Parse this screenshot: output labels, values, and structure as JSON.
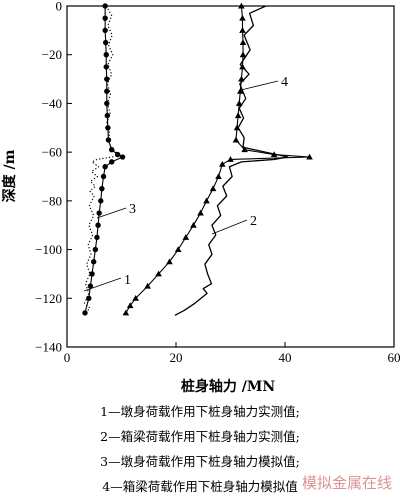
{
  "chart_data": {
    "type": "line",
    "xlabel": "桩身轴力 /MN",
    "ylabel": "深度 /m",
    "xlim": [
      0,
      60
    ],
    "ylim": [
      -140,
      0
    ],
    "xticks": [
      "0",
      "20",
      "40",
      "60"
    ],
    "yticks": [
      "0",
      "−20",
      "−40",
      "−60",
      "−80",
      "−100",
      "−120",
      "−140"
    ],
    "grid": false,
    "series": [
      {
        "name": "1",
        "style": "dotted",
        "points": [
          [
            7.2,
            0
          ],
          [
            8.2,
            -4
          ],
          [
            7.5,
            -8
          ],
          [
            8.3,
            -12
          ],
          [
            7.6,
            -16
          ],
          [
            8.4,
            -20
          ],
          [
            7.5,
            -24
          ],
          [
            8.2,
            -28
          ],
          [
            7.4,
            -32
          ],
          [
            8.0,
            -36
          ],
          [
            7.4,
            -40
          ],
          [
            7.9,
            -44
          ],
          [
            7.3,
            -48
          ],
          [
            7.8,
            -52
          ],
          [
            7.6,
            -56
          ],
          [
            8.5,
            -59
          ],
          [
            9.5,
            -61
          ],
          [
            8.3,
            -62
          ],
          [
            5.5,
            -63
          ],
          [
            4.6,
            -64
          ],
          [
            5.8,
            -66
          ],
          [
            4.5,
            -68
          ],
          [
            5.6,
            -70
          ],
          [
            4.3,
            -72
          ],
          [
            5.2,
            -74
          ],
          [
            4.2,
            -76
          ],
          [
            5.0,
            -78
          ],
          [
            4.1,
            -82
          ],
          [
            4.9,
            -86
          ],
          [
            4.0,
            -90
          ],
          [
            4.7,
            -94
          ],
          [
            3.9,
            -98
          ],
          [
            4.4,
            -102
          ],
          [
            3.6,
            -106
          ],
          [
            4.2,
            -110
          ],
          [
            3.4,
            -114
          ],
          [
            4.0,
            -118
          ],
          [
            3.2,
            -122
          ],
          [
            4.2,
            -124
          ],
          [
            3.4,
            -126
          ]
        ]
      },
      {
        "name": "2",
        "style": "solid",
        "points": [
          [
            36.5,
            0
          ],
          [
            35.5,
            -1
          ],
          [
            33.5,
            -3
          ],
          [
            34.2,
            -8
          ],
          [
            32.5,
            -12
          ],
          [
            33.6,
            -18
          ],
          [
            31.8,
            -24
          ],
          [
            33.4,
            -28
          ],
          [
            31.7,
            -32
          ],
          [
            32.8,
            -38
          ],
          [
            31.6,
            -42
          ],
          [
            32.4,
            -46
          ],
          [
            31.4,
            -50
          ],
          [
            32.5,
            -54
          ],
          [
            32.3,
            -58
          ],
          [
            38.5,
            -61
          ],
          [
            40.5,
            -62
          ],
          [
            38.0,
            -63
          ],
          [
            32.0,
            -64
          ],
          [
            29.8,
            -66
          ],
          [
            30.3,
            -70
          ],
          [
            28.6,
            -74
          ],
          [
            29.3,
            -78
          ],
          [
            27.6,
            -82
          ],
          [
            28.2,
            -86
          ],
          [
            26.6,
            -90
          ],
          [
            27.3,
            -94
          ],
          [
            26.0,
            -98
          ],
          [
            26.6,
            -102
          ],
          [
            25.3,
            -106
          ],
          [
            25.8,
            -110
          ],
          [
            26.5,
            -114
          ],
          [
            25.0,
            -116
          ],
          [
            25.7,
            -118
          ],
          [
            23.5,
            -122
          ],
          [
            21.5,
            -125
          ],
          [
            19.8,
            -127
          ]
        ]
      },
      {
        "name": "3",
        "style": "marker-circle",
        "points": [
          [
            7.0,
            0
          ],
          [
            7.0,
            -5
          ],
          [
            7.0,
            -10
          ],
          [
            7.1,
            -15
          ],
          [
            7.2,
            -20
          ],
          [
            7.2,
            -25
          ],
          [
            7.3,
            -30
          ],
          [
            7.3,
            -35
          ],
          [
            7.3,
            -40
          ],
          [
            7.4,
            -45
          ],
          [
            7.5,
            -50
          ],
          [
            7.6,
            -55
          ],
          [
            8.2,
            -59
          ],
          [
            9.3,
            -61
          ],
          [
            10.2,
            -62
          ],
          [
            8.2,
            -64
          ],
          [
            7.0,
            -66
          ],
          [
            6.7,
            -70
          ],
          [
            6.4,
            -75
          ],
          [
            6.2,
            -80
          ],
          [
            5.9,
            -85
          ],
          [
            5.7,
            -90
          ],
          [
            5.5,
            -95
          ],
          [
            5.2,
            -100
          ],
          [
            4.9,
            -105
          ],
          [
            4.6,
            -110
          ],
          [
            4.3,
            -115
          ],
          [
            4.0,
            -120
          ],
          [
            3.3,
            -126
          ]
        ]
      },
      {
        "name": "4",
        "style": "marker-triangle",
        "points": [
          [
            32.0,
            0
          ],
          [
            32.2,
            -5
          ],
          [
            32.2,
            -10
          ],
          [
            32.3,
            -15
          ],
          [
            32.3,
            -20
          ],
          [
            32.2,
            -25
          ],
          [
            32.0,
            -30
          ],
          [
            31.8,
            -35
          ],
          [
            31.6,
            -40
          ],
          [
            31.4,
            -45
          ],
          [
            31.2,
            -50
          ],
          [
            31.0,
            -55
          ],
          [
            32.6,
            -59
          ],
          [
            38.0,
            -61
          ],
          [
            44.5,
            -62
          ],
          [
            30.0,
            -63
          ],
          [
            28.5,
            -65
          ],
          [
            27.8,
            -70
          ],
          [
            26.8,
            -75
          ],
          [
            25.6,
            -80
          ],
          [
            24.5,
            -85
          ],
          [
            23.2,
            -90
          ],
          [
            21.8,
            -95
          ],
          [
            20.4,
            -100
          ],
          [
            18.8,
            -105
          ],
          [
            16.8,
            -110
          ],
          [
            14.8,
            -115
          ],
          [
            12.6,
            -120
          ],
          [
            11.6,
            -123
          ],
          [
            10.8,
            -126
          ]
        ]
      }
    ]
  },
  "legend": [
    "1—墩身荷载作用下桩身轴力实测值;",
    "2—箱梁荷载作用下桩身轴力实测值;",
    "3—墩身荷载作用下桩身轴力模拟值;",
    "4—箱梁荷载作用下桩身轴力模拟值"
  ],
  "watermark": "模拟金属在线"
}
